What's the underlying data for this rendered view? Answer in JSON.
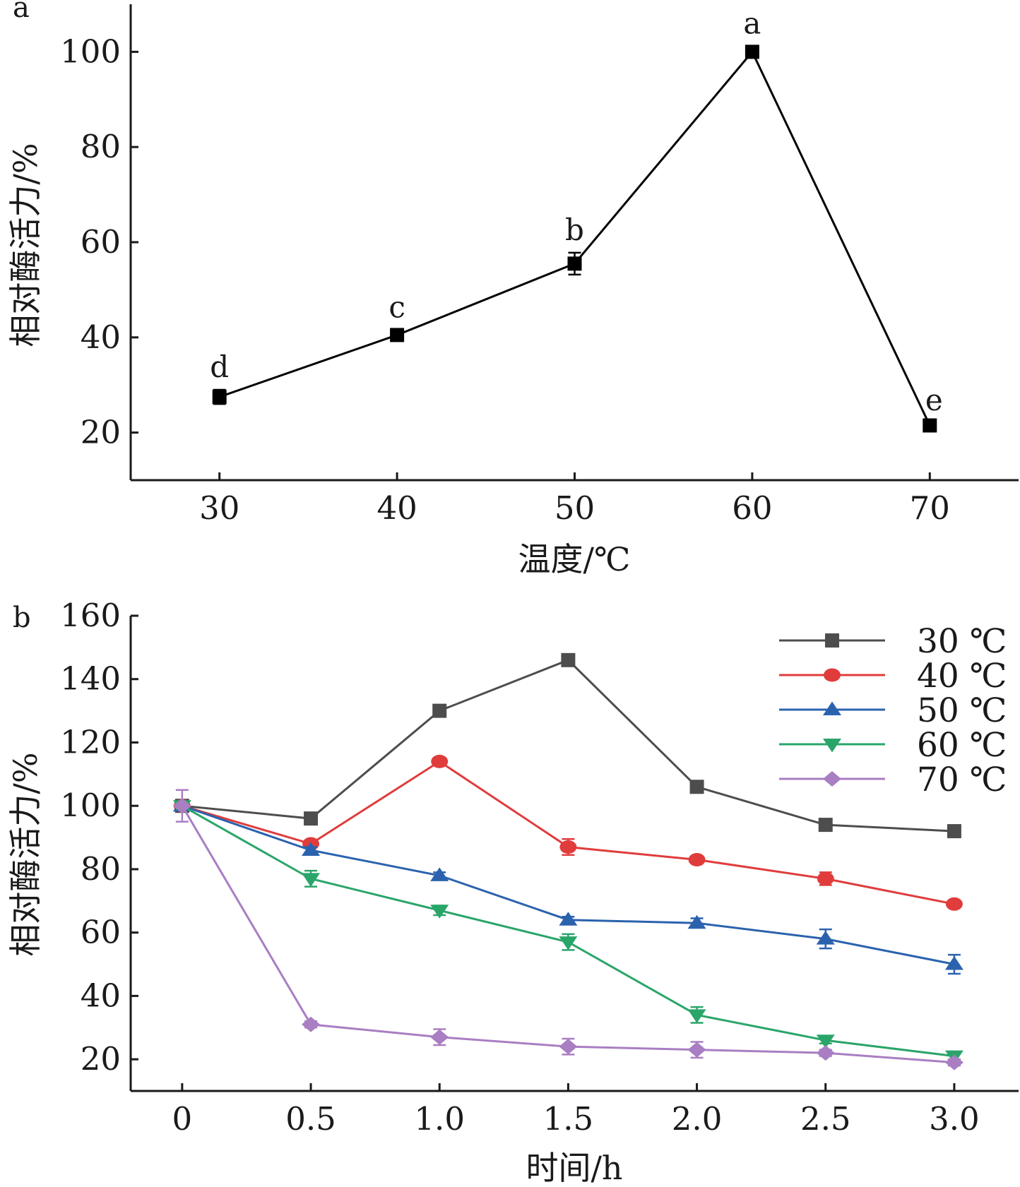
{
  "chart_data": [
    {
      "type": "line",
      "panel_label": "a",
      "xlabel": "温度/℃",
      "ylabel": "相对酶活力/%",
      "x": [
        30,
        40,
        50,
        60,
        70
      ],
      "xticks": [
        "30",
        "40",
        "50",
        "60",
        "70"
      ],
      "xlim": [
        25,
        75
      ],
      "ylim": [
        10,
        110
      ],
      "yticks": [
        "20",
        "40",
        "60",
        "80",
        "100"
      ],
      "grid": false,
      "series": [
        {
          "color": "#000000",
          "marker": "square",
          "values": [
            27.5,
            40.5,
            55.5,
            100,
            21.5
          ],
          "errors": [
            1.5,
            1.0,
            2.3,
            1.2,
            0.5
          ],
          "significance": [
            "d",
            "c",
            "b",
            "a",
            "e"
          ]
        }
      ]
    },
    {
      "type": "line",
      "panel_label": "b",
      "xlabel": "时间/h",
      "ylabel": "相对酶活力/%",
      "x": [
        0,
        0.5,
        1.0,
        1.5,
        2.0,
        2.5,
        3.0
      ],
      "xticks": [
        "0",
        "0.5",
        "1.0",
        "1.5",
        "2.0",
        "2.5",
        "3.0"
      ],
      "xlim": [
        -0.2,
        3.25
      ],
      "ylim": [
        10,
        160
      ],
      "yticks": [
        "20",
        "40",
        "60",
        "80",
        "100",
        "120",
        "140",
        "160"
      ],
      "grid": false,
      "legend_position": "top-right",
      "series": [
        {
          "name": "30 ℃",
          "color": "#4d4d4d",
          "marker": "square",
          "values": [
            100,
            96,
            130,
            146,
            106,
            94,
            92
          ],
          "errors": [
            1,
            1,
            1,
            1,
            1,
            1,
            1
          ]
        },
        {
          "name": "40 ℃",
          "color": "#e03c3c",
          "marker": "circle",
          "values": [
            100,
            88,
            114,
            87,
            83,
            77,
            69
          ],
          "errors": [
            1,
            1,
            1,
            2.5,
            1,
            2,
            1
          ]
        },
        {
          "name": "50 ℃",
          "color": "#2b62ae",
          "marker": "triangle-up",
          "values": [
            100,
            86,
            78,
            64,
            63,
            58,
            50
          ],
          "errors": [
            1,
            1,
            1,
            1,
            1.5,
            3,
            3
          ]
        },
        {
          "name": "60 ℃",
          "color": "#2aa56a",
          "marker": "triangle-down",
          "values": [
            100,
            77,
            67,
            57,
            34,
            26,
            21
          ],
          "errors": [
            1,
            2.5,
            1.5,
            2.5,
            2.5,
            1,
            1
          ]
        },
        {
          "name": "70 ℃",
          "color": "#a97ec2",
          "marker": "diamond",
          "values": [
            100,
            31,
            27,
            24,
            23,
            22,
            19
          ],
          "errors": [
            5,
            1,
            2.5,
            2.5,
            2.5,
            1,
            1
          ]
        }
      ]
    }
  ]
}
